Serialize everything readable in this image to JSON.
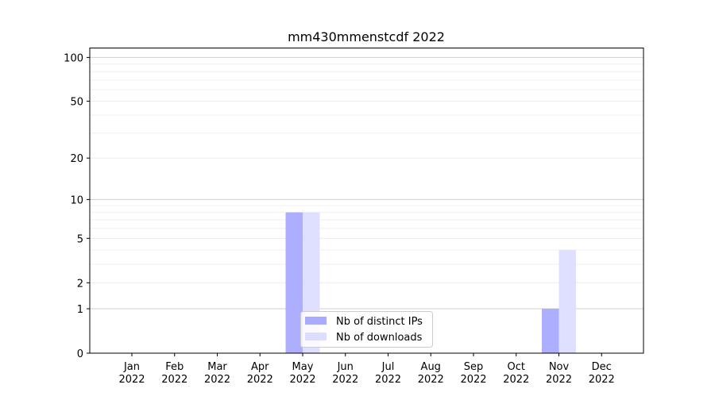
{
  "chart_data": {
    "type": "bar",
    "title": "mm430mmenstcdf 2022",
    "xlabel": "",
    "ylabel": "",
    "yscale": "log1p",
    "ylim": [
      0,
      116
    ],
    "yticks": [
      0,
      1,
      2,
      5,
      10,
      20,
      50,
      100
    ],
    "grid": true,
    "legend_placement": "bottom-center",
    "categories": [
      "Jan\n2022",
      "Feb\n2022",
      "Mar\n2022",
      "Apr\n2022",
      "May\n2022",
      "Jun\n2022",
      "Jul\n2022",
      "Aug\n2022",
      "Sep\n2022",
      "Oct\n2022",
      "Nov\n2022",
      "Dec\n2022"
    ],
    "series": [
      {
        "name": "Nb of distinct IPs",
        "color": "#aaaaff",
        "values": [
          0,
          0,
          0,
          0,
          8,
          0,
          0,
          0,
          0,
          0,
          1,
          0
        ]
      },
      {
        "name": "Nb of downloads",
        "color": "#ddddff",
        "values": [
          0,
          0,
          0,
          0,
          8,
          0,
          0,
          0,
          0,
          0,
          4,
          0
        ]
      }
    ]
  }
}
